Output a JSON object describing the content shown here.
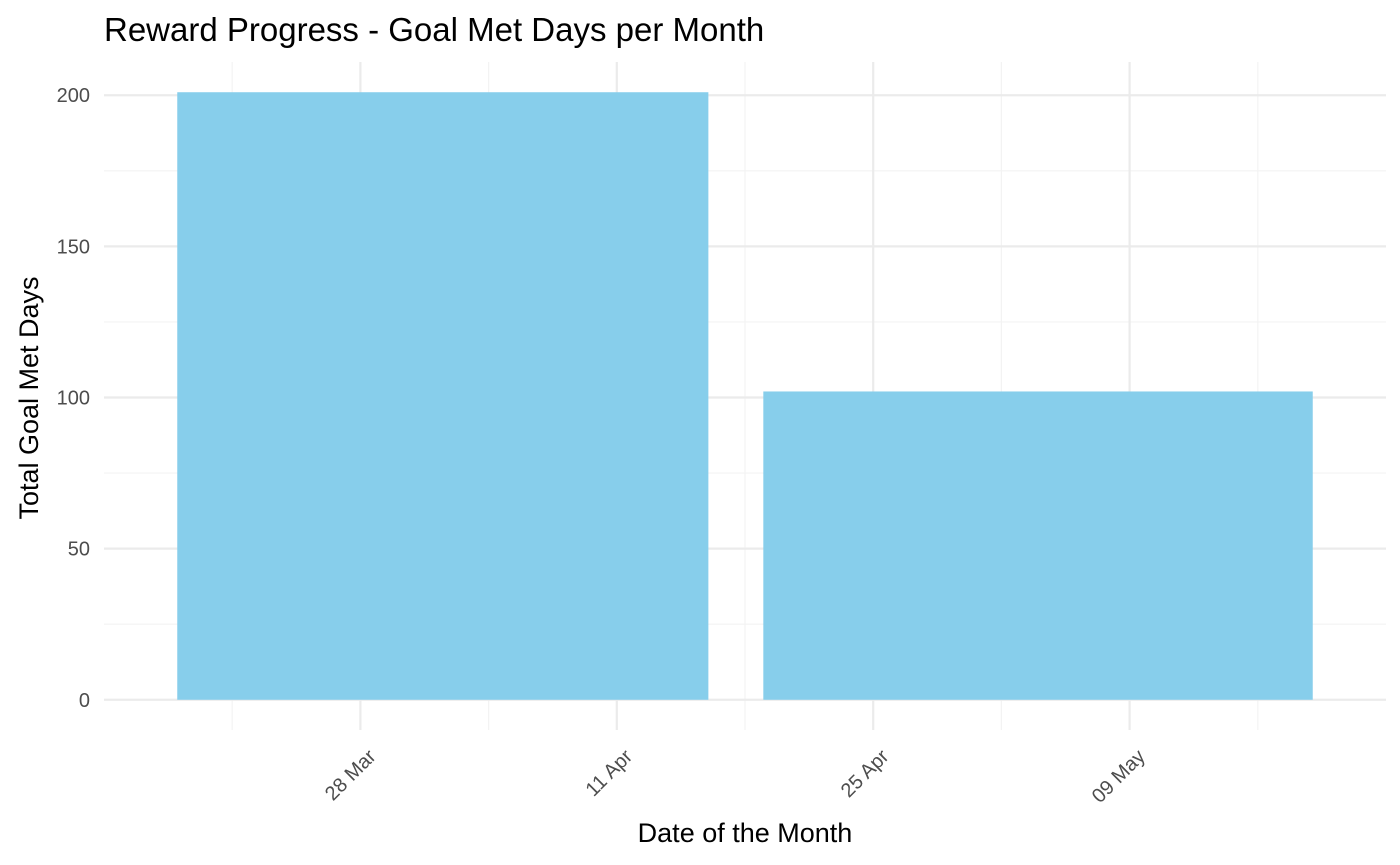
{
  "chart_data": {
    "type": "bar",
    "title": "Reward Progress - Goal Met Days per Month",
    "xlabel": "Date of the Month",
    "ylabel": "Total Goal Met Days",
    "x_axis_type": "date",
    "x_ticks": [
      {
        "date": "2024-03-28",
        "label": "28 Mar"
      },
      {
        "date": "2024-04-11",
        "label": "11 Apr"
      },
      {
        "date": "2024-04-25",
        "label": "25 Apr"
      },
      {
        "date": "2024-05-09",
        "label": "09 May"
      }
    ],
    "xlim": [
      "2024-03-14",
      "2024-05-23"
    ],
    "bars": [
      {
        "month": "2024-04",
        "start": "2024-03-18",
        "end": "2024-04-16",
        "value": 201
      },
      {
        "month": "2024-05",
        "start": "2024-04-19",
        "end": "2024-05-19",
        "value": 102
      }
    ],
    "y_ticks": [
      0,
      50,
      100,
      150,
      200
    ],
    "ylim": [
      -10,
      211
    ],
    "bar_color": "#87CEEB",
    "grid": true,
    "legend": "none"
  }
}
